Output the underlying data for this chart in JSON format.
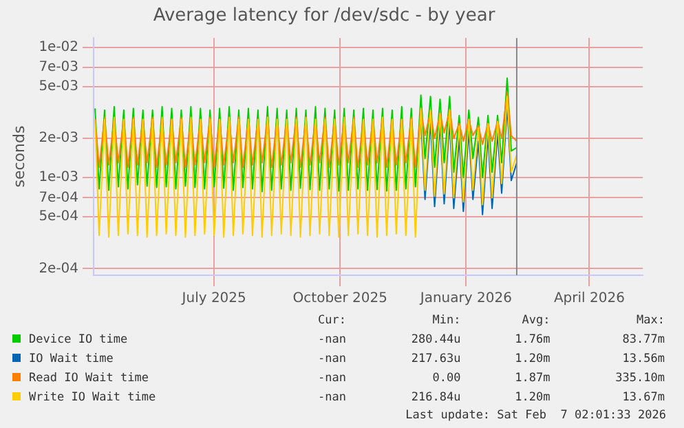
{
  "chart_data": {
    "type": "line",
    "title": "Average latency for /dev/sdc - by year",
    "ylabel": "seconds",
    "x": [
      "2025-04-05",
      "2025-04-08",
      "2025-04-12",
      "2025-04-15",
      "2025-04-19",
      "2025-04-22",
      "2025-04-26",
      "2025-04-29",
      "2025-05-03",
      "2025-05-06",
      "2025-05-10",
      "2025-05-13",
      "2025-05-17",
      "2025-05-20",
      "2025-05-24",
      "2025-05-27",
      "2025-05-31",
      "2025-06-03",
      "2025-06-07",
      "2025-06-10",
      "2025-06-14",
      "2025-06-17",
      "2025-06-21",
      "2025-06-24",
      "2025-06-28",
      "2025-07-01",
      "2025-07-05",
      "2025-07-08",
      "2025-07-12",
      "2025-07-15",
      "2025-07-19",
      "2025-07-22",
      "2025-07-26",
      "2025-07-29",
      "2025-08-02",
      "2025-08-05",
      "2025-08-09",
      "2025-08-12",
      "2025-08-16",
      "2025-08-19",
      "2025-08-23",
      "2025-08-26",
      "2025-08-30",
      "2025-09-02",
      "2025-09-06",
      "2025-09-09",
      "2025-09-13",
      "2025-09-16",
      "2025-09-20",
      "2025-09-23",
      "2025-09-27",
      "2025-09-30",
      "2025-10-04",
      "2025-10-07",
      "2025-10-11",
      "2025-10-14",
      "2025-10-18",
      "2025-10-21",
      "2025-10-25",
      "2025-10-28",
      "2025-11-01",
      "2025-11-04",
      "2025-11-08",
      "2025-11-11",
      "2025-11-15",
      "2025-11-18",
      "2025-11-22",
      "2025-11-25",
      "2025-11-29",
      "2025-12-02",
      "2025-12-06",
      "2025-12-09",
      "2025-12-13",
      "2025-12-16",
      "2025-12-20",
      "2025-12-23",
      "2025-12-27",
      "2025-12-30",
      "2026-01-03",
      "2026-01-06",
      "2026-01-10",
      "2026-01-13",
      "2026-01-17",
      "2026-01-20",
      "2026-01-24",
      "2026-01-27",
      "2026-01-31",
      "2026-02-03",
      "2026-02-07"
    ],
    "series": [
      {
        "name": "Device IO time",
        "color": "#00cc00",
        "values": [
          0.0034,
          0.00082,
          0.0033,
          0.0008,
          0.0035,
          0.00085,
          0.0033,
          0.00082,
          0.0034,
          0.00088,
          0.0033,
          0.00086,
          0.0033,
          0.00084,
          0.0035,
          0.00085,
          0.0034,
          0.00082,
          0.0033,
          0.00086,
          0.0035,
          0.00084,
          0.0034,
          0.00082,
          0.0033,
          0.00085,
          0.0034,
          0.00083,
          0.0035,
          0.0008,
          0.0033,
          0.00084,
          0.0034,
          0.00082,
          0.0033,
          0.00078,
          0.0035,
          0.0008,
          0.0034,
          0.00082,
          0.0033,
          0.0008,
          0.0034,
          0.00083,
          0.0033,
          0.00081,
          0.0035,
          0.0008,
          0.0034,
          0.00082,
          0.0033,
          0.00079,
          0.0034,
          0.0008,
          0.0033,
          0.00082,
          0.0034,
          0.0008,
          0.0033,
          0.00081,
          0.0034,
          0.00079,
          0.0033,
          0.0008,
          0.0035,
          0.00082,
          0.0034,
          0.00085,
          0.0043,
          0.0014,
          0.0042,
          0.0012,
          0.004,
          0.0013,
          0.0042,
          0.0011,
          0.003,
          0.001,
          0.0033,
          0.0014,
          0.0029,
          0.001,
          0.003,
          0.0011,
          0.003,
          0.0013,
          0.0058,
          0.0016,
          0.0017
        ]
      },
      {
        "name": "IO Wait time",
        "color": "#0066b3",
        "values": [
          null,
          null,
          null,
          null,
          null,
          null,
          null,
          null,
          null,
          null,
          null,
          null,
          null,
          null,
          null,
          null,
          null,
          null,
          null,
          null,
          null,
          null,
          null,
          null,
          null,
          null,
          null,
          null,
          null,
          null,
          null,
          null,
          null,
          null,
          null,
          null,
          null,
          null,
          null,
          null,
          null,
          null,
          null,
          null,
          null,
          null,
          null,
          null,
          null,
          null,
          null,
          null,
          null,
          null,
          null,
          null,
          null,
          null,
          null,
          null,
          null,
          null,
          null,
          null,
          null,
          null,
          null,
          null,
          0.0028,
          0.00068,
          0.0027,
          0.0006,
          0.0026,
          0.00063,
          0.0027,
          0.00058,
          0.002,
          0.00055,
          0.0023,
          0.00068,
          0.0019,
          0.00052,
          0.0021,
          0.00058,
          0.0022,
          0.00076,
          0.0035,
          0.00095,
          0.0013
        ]
      },
      {
        "name": "Read IO Wait time",
        "color": "#ff8000",
        "values": [
          0.0028,
          0.0012,
          0.0029,
          0.00125,
          0.0028,
          0.0013,
          0.0028,
          0.0012,
          0.0029,
          0.00125,
          0.0028,
          0.0013,
          0.0029,
          0.0012,
          0.0028,
          0.00125,
          0.0028,
          0.0013,
          0.0029,
          0.0012,
          0.0028,
          0.00125,
          0.0028,
          0.0013,
          0.0029,
          0.0012,
          0.0028,
          0.00125,
          0.0028,
          0.0013,
          0.0029,
          0.0012,
          0.0028,
          0.00125,
          0.0028,
          0.0013,
          0.0029,
          0.0012,
          0.0028,
          0.00125,
          0.0028,
          0.0013,
          0.0029,
          0.0012,
          0.0028,
          0.00125,
          0.0028,
          0.0013,
          0.0029,
          0.0012,
          0.0028,
          0.00125,
          0.0028,
          0.0013,
          0.0029,
          0.0012,
          0.0028,
          0.00125,
          0.0028,
          0.0013,
          0.0029,
          0.0012,
          0.0028,
          0.00125,
          0.0028,
          0.0013,
          0.0029,
          0.0012,
          0.0033,
          0.0021,
          0.0032,
          0.002,
          0.0031,
          0.0022,
          0.0033,
          0.002,
          0.0026,
          0.0019,
          0.0028,
          0.0021,
          0.0025,
          0.0018,
          0.0026,
          0.0019,
          0.0027,
          0.002,
          0.0045,
          0.0021,
          0.0019
        ]
      },
      {
        "name": "Write IO Wait time",
        "color": "#ffcc00",
        "values": [
          0.0028,
          0.00036,
          0.0028,
          0.00035,
          0.0029,
          0.00036,
          0.0028,
          0.00037,
          0.0028,
          0.00036,
          0.0028,
          0.00035,
          0.0028,
          0.00036,
          0.0029,
          0.00037,
          0.0028,
          0.00036,
          0.0028,
          0.00035,
          0.0029,
          0.00036,
          0.0028,
          0.00037,
          0.0028,
          0.00036,
          0.0028,
          0.00035,
          0.0029,
          0.00036,
          0.0028,
          0.00037,
          0.0028,
          0.00036,
          0.0028,
          0.00035,
          0.0029,
          0.00036,
          0.0028,
          0.00037,
          0.0028,
          0.00036,
          0.0028,
          0.00035,
          0.0029,
          0.00036,
          0.0028,
          0.00037,
          0.0028,
          0.00036,
          0.0028,
          0.00035,
          0.0029,
          0.00036,
          0.0028,
          0.00037,
          0.0028,
          0.00036,
          0.0028,
          0.00035,
          0.0029,
          0.00036,
          0.0028,
          0.00037,
          0.0028,
          0.00036,
          0.0028,
          0.00035,
          0.0034,
          0.0008,
          0.0033,
          0.00072,
          0.0031,
          0.00075,
          0.0033,
          0.0007,
          0.0025,
          0.00065,
          0.0028,
          0.0008,
          0.0024,
          0.00062,
          0.0026,
          0.0007,
          0.0027,
          0.0009,
          0.0042,
          0.0011,
          0.0015
        ]
      }
    ],
    "xlim": [
      "2025-04-04",
      "2026-05-10"
    ],
    "xticks": [
      {
        "value": "2025-07-01",
        "label": "July 2025"
      },
      {
        "value": "2025-10-01",
        "label": "October 2025"
      },
      {
        "value": "2026-01-01",
        "label": "January 2026"
      },
      {
        "value": "2026-04-01",
        "label": "April 2026"
      }
    ],
    "ylim": [
      0.000178,
      0.0118
    ],
    "yticks": [
      {
        "value": 0.0002,
        "label": "2e-04"
      },
      {
        "value": 0.0005,
        "label": "5e-04"
      },
      {
        "value": 0.0007,
        "label": "7e-04"
      },
      {
        "value": 0.001,
        "label": "1e-03"
      },
      {
        "value": 0.002,
        "label": "2e-03"
      },
      {
        "value": 0.005,
        "label": "5e-03"
      },
      {
        "value": 0.007,
        "label": "7e-03"
      },
      {
        "value": 0.01,
        "label": "1e-02"
      }
    ],
    "log": "y",
    "grid": true,
    "legend": "bottom left",
    "marker": "none",
    "line_style": "solid",
    "ref_lines": [
      {
        "axis": "x",
        "value": "2026-02-07",
        "color": "#888888"
      }
    ],
    "annotations": [
      "Cur: Min: Avg: Max:",
      "-nan 280.44u 1.76m 83.77m",
      "-nan 217.63u 1.20m 13.56m",
      "-nan 0.00 1.87m 335.10m",
      "-nan 216.84u 1.20m 13.67m",
      "Last update: Sat Feb  7 02:01:33 2026"
    ]
  }
}
